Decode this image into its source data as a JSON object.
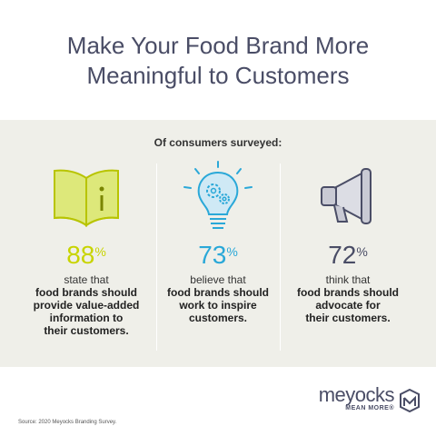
{
  "header": {
    "title_line1": "Make Your Food Brand More",
    "title_line2": "Meaningful to Customers"
  },
  "panel": {
    "subtitle": "Of consumers surveyed:",
    "stats": [
      {
        "icon": "open-book-icon",
        "value": "88",
        "unit": "%",
        "lead": "state that",
        "desc": [
          "food brands should",
          "provide value-added",
          "information to",
          "their customers."
        ],
        "color": "#c8d400"
      },
      {
        "icon": "lightbulb-gears-icon",
        "value": "73",
        "unit": "%",
        "lead": "believe that",
        "desc": [
          "food brands should",
          "work to inspire",
          "customers."
        ],
        "color": "#2aa8d8"
      },
      {
        "icon": "megaphone-icon",
        "value": "72",
        "unit": "%",
        "lead": "think that",
        "desc": [
          "food brands should",
          "advocate for",
          "their customers."
        ],
        "color": "#4a4d66"
      }
    ]
  },
  "footer": {
    "brand_name": "meyocks",
    "brand_tagline": "MEAN MORE",
    "registered": "®",
    "source": "Source: 2020 Meyocks Branding Survey."
  }
}
